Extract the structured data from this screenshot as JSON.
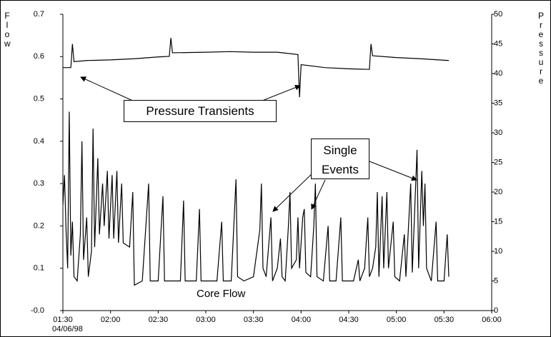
{
  "chart_data": {
    "type": "line",
    "y_label": "Flow",
    "y2_label": "Pressure",
    "x_sublabel": "04/06/98",
    "annotations": [
      "Pressure Transients",
      "Single Events",
      "Core Flow"
    ],
    "xlim": [
      "01:30",
      "06:00"
    ],
    "xticks": [
      "01:30",
      "02:00",
      "02:30",
      "03:00",
      "03:30",
      "04:00",
      "04:30",
      "05:00",
      "05:30",
      "06:00"
    ],
    "ylim": [
      0,
      0.7
    ],
    "yticks": [
      {
        "value": 0,
        "label": "-0.0"
      },
      0.1,
      0.2,
      0.3,
      0.4,
      0.5,
      0.6,
      0.7
    ],
    "y2lim": [
      0,
      50
    ],
    "y2ticks": [
      0,
      5,
      10,
      15,
      20,
      25,
      30,
      35,
      40,
      45,
      50
    ],
    "series": [
      {
        "color": "#000000",
        "x": [
          "01:30",
          "01:31",
          "01:32",
          "01:33",
          "01:34",
          "01:35",
          "01:36",
          "01:37",
          "01:39",
          "01:41",
          "01:42",
          "01:43",
          "01:45",
          "01:46",
          "01:48",
          "01:49",
          "01:50",
          "01:52",
          "01:53",
          "01:55",
          "01:56",
          "01:58",
          "01:59",
          "02:01",
          "02:02",
          "02:04",
          "02:05",
          "02:07",
          "02:08",
          "02:12",
          "02:14",
          "02:15",
          "02:20",
          "02:24",
          "02:25",
          "02:30",
          "02:33",
          "02:34",
          "02:44",
          "02:46",
          "02:47",
          "02:54",
          "02:56",
          "02:57",
          "03:07",
          "03:10",
          "03:11",
          "03:16",
          "03:19",
          "03:20",
          "03:24",
          "03:30",
          "03:34",
          "03:35",
          "03:36",
          "03:38",
          "03:41",
          "03:42",
          "03:45",
          "03:47",
          "03:48",
          "03:50",
          "03:52",
          "03:53",
          "03:54",
          "03:57",
          "03:58",
          "03:59",
          "04:01",
          "04:02",
          "04:03",
          "04:06",
          "04:08",
          "04:09",
          "04:10",
          "04:14",
          "04:17",
          "04:18",
          "04:22",
          "04:25",
          "04:26",
          "04:33",
          "04:36",
          "04:37",
          "04:40",
          "04:42",
          "04:43",
          "04:45",
          "04:47",
          "04:48",
          "04:49",
          "04:51",
          "04:52",
          "04:54",
          "04:55",
          "04:58",
          "04:59",
          "05:02",
          "05:05",
          "05:06",
          "05:09",
          "05:10",
          "05:13",
          "05:14",
          "05:16",
          "05:17",
          "05:18",
          "05:19",
          "05:22",
          "05:25",
          "05:26",
          "05:30",
          "05:32",
          "05:33"
        ],
        "values": [
          0.25,
          0.32,
          0.19,
          0.1,
          0.47,
          0.13,
          0.21,
          0.08,
          0.07,
          0.18,
          0.4,
          0.12,
          0.22,
          0.08,
          0.14,
          0.43,
          0.15,
          0.36,
          0.18,
          0.3,
          0.2,
          0.33,
          0.17,
          0.32,
          0.17,
          0.33,
          0.16,
          0.3,
          0.16,
          0.15,
          0.28,
          0.06,
          0.07,
          0.3,
          0.07,
          0.07,
          0.27,
          0.07,
          0.07,
          0.26,
          0.07,
          0.07,
          0.24,
          0.07,
          0.07,
          0.21,
          0.07,
          0.07,
          0.31,
          0.08,
          0.07,
          0.08,
          0.19,
          0.3,
          0.1,
          0.08,
          0.22,
          0.07,
          0.1,
          0.17,
          0.08,
          0.07,
          0.2,
          0.28,
          0.1,
          0.12,
          0.22,
          0.1,
          0.22,
          0.24,
          0.09,
          0.08,
          0.2,
          0.3,
          0.08,
          0.07,
          0.2,
          0.07,
          0.07,
          0.22,
          0.07,
          0.07,
          0.12,
          0.07,
          0.1,
          0.22,
          0.08,
          0.1,
          0.15,
          0.28,
          0.08,
          0.27,
          0.1,
          0.28,
          0.1,
          0.21,
          0.08,
          0.07,
          0.18,
          0.08,
          0.3,
          0.09,
          0.38,
          0.1,
          0.33,
          0.2,
          0.3,
          0.1,
          0.07,
          0.21,
          0.07,
          0.07,
          0.18,
          0.08
        ]
      },
      {
        "color": "#000000",
        "axis": "y2",
        "x": [
          "01:30",
          "01:35",
          "01:36",
          "01:37",
          "01:45",
          "02:00",
          "02:15",
          "02:30",
          "02:37",
          "02:38",
          "02:39",
          "03:00",
          "03:15",
          "03:30",
          "03:45",
          "03:58",
          "03:59",
          "04:00",
          "04:15",
          "04:30",
          "04:43",
          "04:44",
          "04:45",
          "05:00",
          "05:15",
          "05:33"
        ],
        "values": [
          41,
          41,
          45,
          42,
          42.2,
          42.3,
          42.5,
          42.8,
          42.9,
          46,
          43.5,
          43.6,
          43.7,
          43.6,
          43.6,
          43.2,
          36,
          41.5,
          41,
          40.8,
          40.7,
          45,
          43,
          42.7,
          42.5,
          42.2
        ]
      }
    ]
  }
}
